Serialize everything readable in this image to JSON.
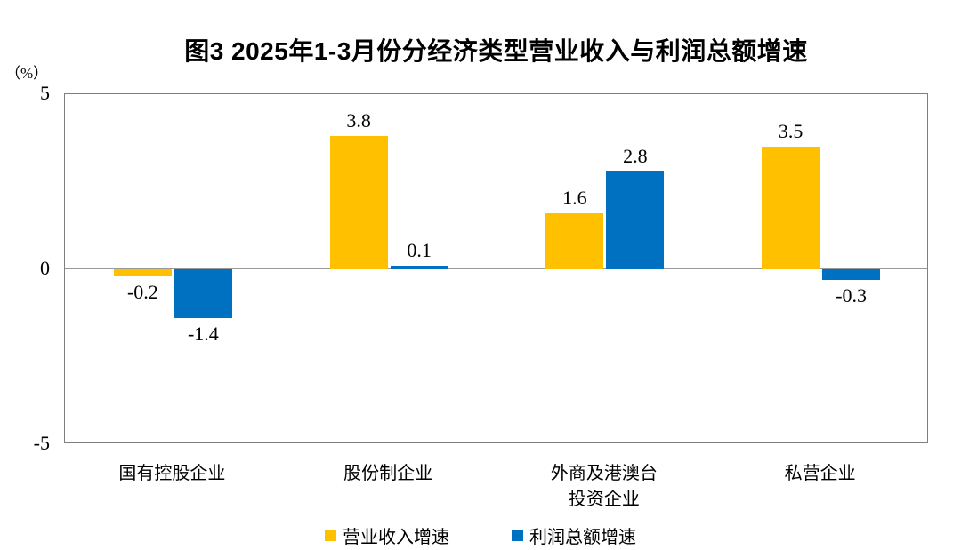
{
  "chart_data": {
    "type": "bar",
    "title": "图3  2025年1-3月份分经济类型营业收入与利润总额增速",
    "unit_label": "（%）",
    "categories": [
      "国有控股企业",
      "股份制企业",
      "外商及港澳台\n投资企业",
      "私营企业"
    ],
    "series": [
      {
        "name": "营业收入增速",
        "color": "#FFC000",
        "values": [
          -0.2,
          3.8,
          1.6,
          3.5
        ]
      },
      {
        "name": "利润总额增速",
        "color": "#0070C0",
        "values": [
          -1.4,
          0.1,
          2.8,
          -0.3
        ]
      }
    ],
    "ylim": [
      -5,
      5
    ],
    "yticks": [
      5,
      0,
      -5
    ],
    "grid": false,
    "legend_position": "bottom",
    "axis_color": "#7f7f7f",
    "zero_line_color": "#999999",
    "text_color": "#000000",
    "background_color": "#ffffff"
  }
}
